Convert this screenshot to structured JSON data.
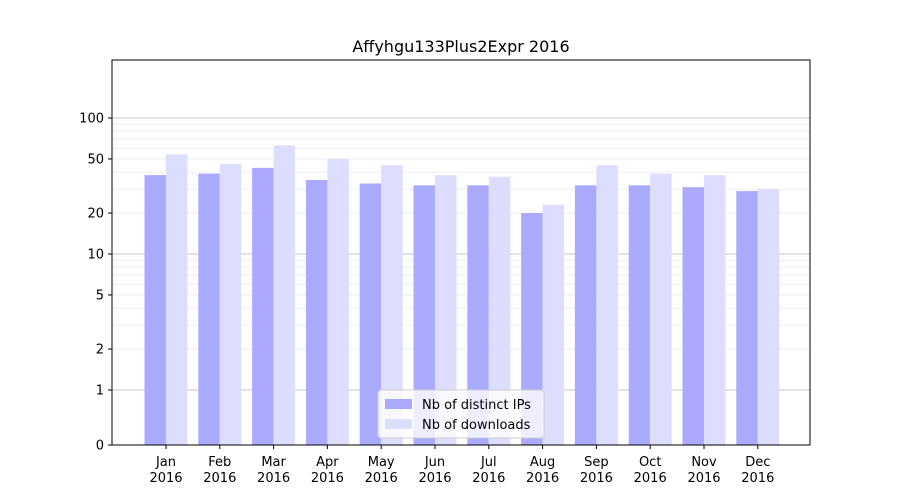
{
  "chart_data": {
    "type": "bar",
    "title": "Affyhgu133Plus2Expr 2016",
    "xlabel": "",
    "ylabel": "",
    "y_scale": "symlog",
    "ylim": [
      0,
      120
    ],
    "y_ticks": [
      0,
      1,
      2,
      5,
      10,
      20,
      50,
      100
    ],
    "grid": "horizontal",
    "legend_position": "bottom-center",
    "categories": [
      [
        "Jan",
        "2016"
      ],
      [
        "Feb",
        "2016"
      ],
      [
        "Mar",
        "2016"
      ],
      [
        "Apr",
        "2016"
      ],
      [
        "May",
        "2016"
      ],
      [
        "Jun",
        "2016"
      ],
      [
        "Jul",
        "2016"
      ],
      [
        "Aug",
        "2016"
      ],
      [
        "Sep",
        "2016"
      ],
      [
        "Oct",
        "2016"
      ],
      [
        "Nov",
        "2016"
      ],
      [
        "Dec",
        "2016"
      ]
    ],
    "series": [
      {
        "name": "Nb of distinct IPs",
        "color": "#aaaaff",
        "values": [
          38,
          39,
          43,
          35,
          33,
          32,
          32,
          20,
          32,
          32,
          31,
          29
        ]
      },
      {
        "name": "Nb of downloads",
        "color": "#ddddff",
        "values": [
          54,
          46,
          63,
          50,
          45,
          38,
          37,
          23,
          45,
          39,
          38,
          30
        ]
      }
    ]
  }
}
